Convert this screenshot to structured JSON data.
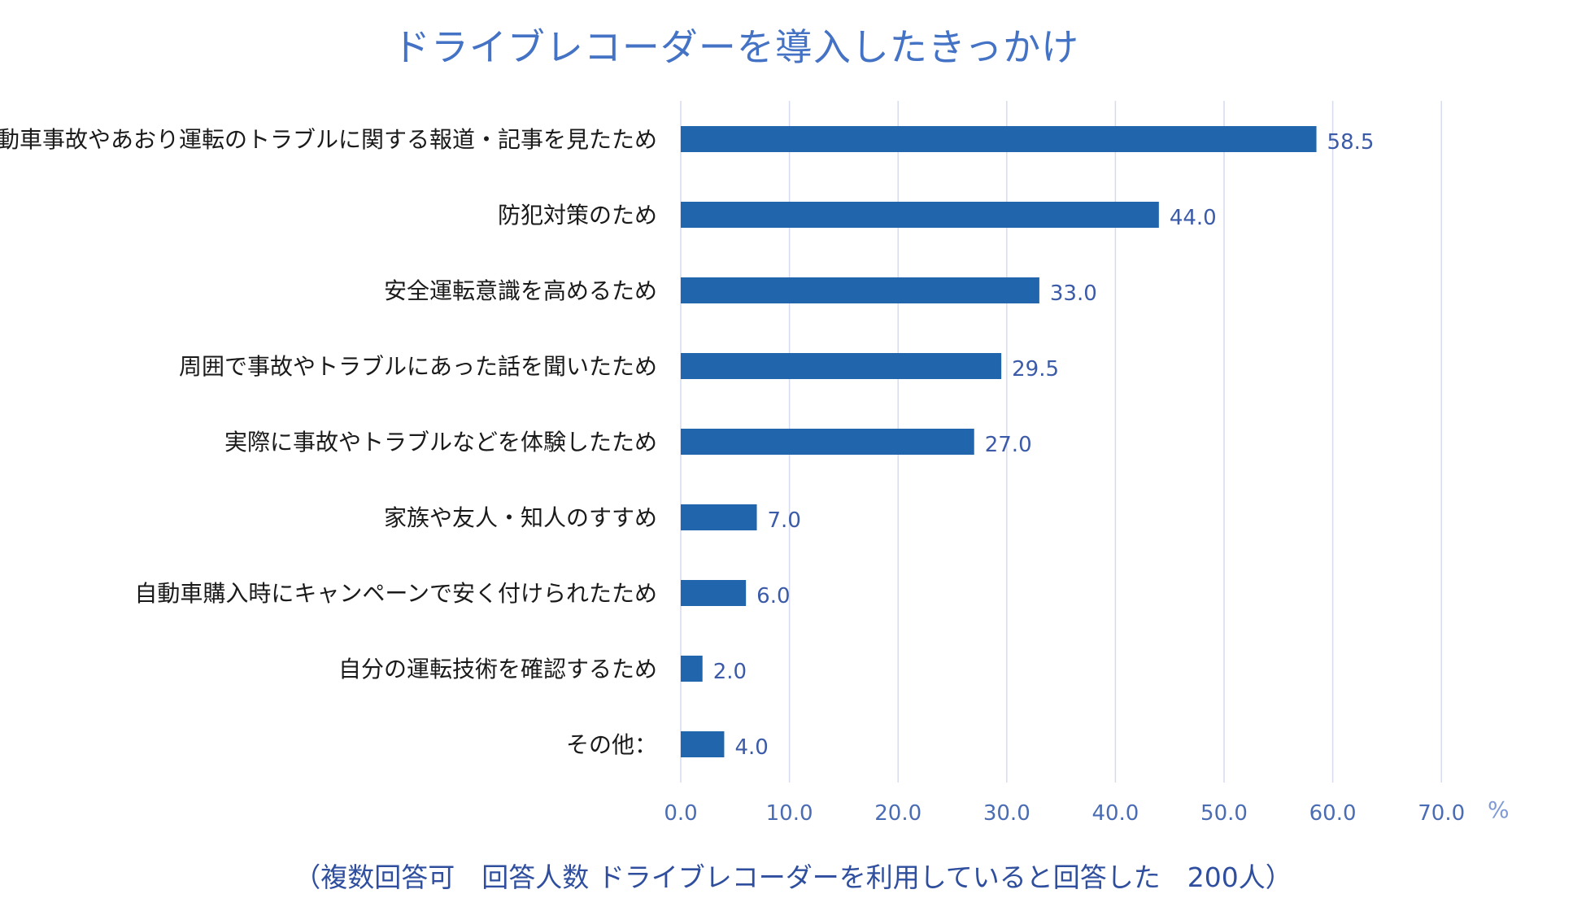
{
  "title": "ドライブレコーダーを導入したきっかけ",
  "footnote": "（複数回答可　回答人数 ドライブレコーダーを利用していると回答した　200人）",
  "chart_data": {
    "type": "bar",
    "orientation": "horizontal",
    "title": "ドライブレコーダーを導入したきっかけ",
    "categories": [
      "自動車事故やあおり運転のトラブルに関する報道・記事を見たため",
      "防犯対策のため",
      "安全運転意識を高めるため",
      "周囲で事故やトラブルにあった話を聞いたため",
      "実際に事故やトラブルなどを体験したため",
      "家族や友人・知人のすすめ",
      "自動車購入時にキャンペーンで安く付けられたため",
      "自分の運転技術を確認するため",
      "その他："
    ],
    "values": [
      58.5,
      44.0,
      33.0,
      29.5,
      27.0,
      7.0,
      6.0,
      2.0,
      4.0
    ],
    "value_labels": [
      "58.5",
      "44.0",
      "33.0",
      "29.5",
      "27.0",
      "7.0",
      "6.0",
      "2.0",
      "4.0"
    ],
    "xlim": [
      0,
      70
    ],
    "xticks": [
      "0.0",
      "10.0",
      "20.0",
      "30.0",
      "40.0",
      "50.0",
      "60.0",
      "70.0"
    ],
    "xunit": "%",
    "grid": true,
    "bar_color": "#2166ac",
    "grid_color": "#d6dced"
  }
}
